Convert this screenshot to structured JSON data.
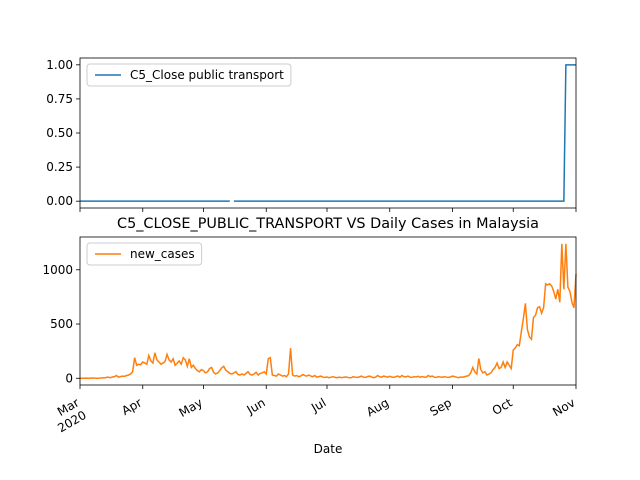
{
  "chart_data": [
    {
      "type": "line",
      "series": [
        {
          "name": "C5_Close public transport",
          "color": "#1f77b4",
          "values": [
            0,
            0,
            0,
            0,
            0,
            0,
            0,
            0,
            0,
            0,
            0,
            0,
            0,
            0,
            0,
            0,
            0,
            0,
            0,
            0,
            0,
            0,
            0,
            0,
            0,
            0,
            0,
            0,
            0,
            0,
            0,
            0,
            0,
            0,
            0,
            0,
            0,
            0,
            0,
            0,
            0,
            0,
            0,
            0,
            0,
            0,
            0,
            0,
            0,
            0,
            0,
            0,
            0,
            0,
            0,
            0,
            0,
            0,
            0,
            0,
            0,
            0,
            0,
            0,
            0,
            0,
            0,
            0,
            0,
            0,
            0,
            0,
            0,
            0,
            0,
            null,
            0,
            0,
            0,
            0,
            0,
            0,
            0,
            0,
            0,
            0,
            0,
            0,
            0,
            0,
            0,
            0,
            0,
            0,
            0,
            0,
            0,
            0,
            0,
            0,
            0,
            0,
            0,
            0,
            0,
            0,
            0,
            0,
            0,
            0,
            0,
            0,
            0,
            0,
            0,
            0,
            0,
            0,
            0,
            0,
            0,
            0,
            0,
            0,
            0,
            0,
            0,
            0,
            0,
            0,
            0,
            0,
            0,
            0,
            0,
            0,
            0,
            0,
            0,
            0,
            0,
            0,
            0,
            0,
            0,
            0,
            0,
            0,
            0,
            0,
            0,
            0,
            0,
            0,
            0,
            0,
            0,
            0,
            0,
            0,
            0,
            0,
            0,
            0,
            0,
            0,
            0,
            0,
            0,
            0,
            0,
            0,
            0,
            0,
            0,
            0,
            0,
            0,
            0,
            0,
            0,
            0,
            0,
            0,
            0,
            0,
            0,
            0,
            0,
            0,
            0,
            0,
            0,
            0,
            0,
            0,
            0,
            0,
            0,
            0,
            0,
            0,
            0,
            0,
            0,
            0,
            0,
            0,
            0,
            0,
            0,
            0,
            0,
            0,
            0,
            0,
            0,
            0,
            0,
            0,
            0,
            0,
            0,
            0,
            0,
            0,
            0,
            0,
            0,
            0,
            0,
            0,
            0,
            0,
            0,
            0,
            0,
            0,
            0,
            0,
            1,
            1,
            1,
            1,
            1,
            1
          ]
        }
      ],
      "ylim": [
        -0.05,
        1.05
      ],
      "yticks": [
        {
          "value": 0,
          "label": "0.00"
        },
        {
          "value": 0.25,
          "label": "0.25"
        },
        {
          "value": 0.5,
          "label": "0.50"
        },
        {
          "value": 0.75,
          "label": "0.75"
        },
        {
          "value": 1,
          "label": "1.00"
        }
      ],
      "legend": "upper left",
      "grid": false
    },
    {
      "type": "line",
      "title": "C5_CLOSE_PUBLIC_TRANSPORT VS Daily Cases in Malaysia",
      "x_label": "Date",
      "categories": [
        "Mar\n2020",
        null,
        null,
        null,
        null,
        null,
        null,
        null,
        null,
        null,
        null,
        null,
        null,
        null,
        null,
        null,
        null,
        null,
        null,
        null,
        null,
        null,
        null,
        null,
        null,
        null,
        null,
        null,
        null,
        null,
        null,
        "Apr",
        null,
        null,
        null,
        null,
        null,
        null,
        null,
        null,
        null,
        null,
        null,
        null,
        null,
        null,
        null,
        null,
        null,
        null,
        null,
        null,
        null,
        null,
        null,
        null,
        null,
        null,
        null,
        null,
        null,
        "May",
        null,
        null,
        null,
        null,
        null,
        null,
        null,
        null,
        null,
        null,
        null,
        null,
        null,
        null,
        null,
        null,
        null,
        null,
        null,
        null,
        null,
        null,
        null,
        null,
        null,
        null,
        null,
        null,
        null,
        null,
        "Jun",
        null,
        null,
        null,
        null,
        null,
        null,
        null,
        null,
        null,
        null,
        null,
        null,
        null,
        null,
        null,
        null,
        null,
        null,
        null,
        null,
        null,
        null,
        null,
        null,
        null,
        null,
        null,
        null,
        null,
        "Jul",
        null,
        null,
        null,
        null,
        null,
        null,
        null,
        null,
        null,
        null,
        null,
        null,
        null,
        null,
        null,
        null,
        null,
        null,
        null,
        null,
        null,
        null,
        null,
        null,
        null,
        null,
        null,
        null,
        null,
        null,
        "Aug",
        null,
        null,
        null,
        null,
        null,
        null,
        null,
        null,
        null,
        null,
        null,
        null,
        null,
        null,
        null,
        null,
        null,
        null,
        null,
        null,
        null,
        null,
        null,
        null,
        null,
        null,
        null,
        null,
        null,
        null,
        "Sep",
        null,
        null,
        null,
        null,
        null,
        null,
        null,
        null,
        null,
        null,
        null,
        null,
        null,
        null,
        null,
        null,
        null,
        null,
        null,
        null,
        null,
        null,
        null,
        null,
        null,
        null,
        null,
        null,
        null,
        "Oct",
        null,
        null,
        null,
        null,
        null,
        null,
        null,
        null,
        null,
        null,
        null,
        null,
        null,
        null,
        null,
        null,
        null,
        null,
        null,
        null,
        null,
        null,
        null,
        null,
        null,
        null,
        null,
        null,
        null,
        null,
        "Nov"
      ],
      "series": [
        {
          "name": "new_cases",
          "color": "#ff7f0e",
          "values": [
            0,
            0,
            0,
            1,
            0,
            0,
            2,
            1,
            0,
            0,
            2,
            5,
            3,
            8,
            10,
            5,
            12,
            15,
            25,
            10,
            15,
            20,
            18,
            25,
            30,
            40,
            60,
            190,
            120,
            130,
            125,
            150,
            140,
            130,
            210,
            160,
            140,
            235,
            170,
            150,
            130,
            140,
            155,
            220,
            170,
            150,
            180,
            120,
            140,
            160,
            130,
            190,
            170,
            110,
            180,
            100,
            120,
            90,
            70,
            60,
            80,
            70,
            50,
            60,
            90,
            100,
            55,
            40,
            50,
            70,
            95,
            110,
            75,
            60,
            45,
            40,
            50,
            60,
            35,
            30,
            40,
            30,
            45,
            60,
            35,
            30,
            40,
            55,
            30,
            45,
            50,
            60,
            40,
            180,
            190,
            30,
            25,
            20,
            40,
            30,
            20,
            25,
            15,
            40,
            277,
            30,
            20,
            25,
            15,
            20,
            35,
            25,
            20,
            30,
            20,
            15,
            25,
            10,
            15,
            20,
            10,
            8,
            12,
            5,
            10,
            15,
            8,
            5,
            10,
            6,
            8,
            12,
            10,
            5,
            6,
            15,
            10,
            8,
            12,
            20,
            10,
            8,
            15,
            20,
            12,
            5,
            10,
            25,
            15,
            10,
            20,
            15,
            10,
            18,
            12,
            8,
            15,
            20,
            10,
            25,
            15,
            12,
            20,
            10,
            8,
            15,
            12,
            18,
            10,
            15,
            12,
            10,
            25,
            15,
            20,
            10,
            8,
            15,
            12,
            10,
            15,
            10,
            8,
            12,
            20,
            15,
            10,
            5,
            12,
            10,
            15,
            20,
            25,
            50,
            100,
            60,
            40,
            182,
            80,
            50,
            60,
            30,
            40,
            50,
            80,
            100,
            140,
            90,
            100,
            150,
            100,
            150,
            120,
            90,
            260,
            280,
            310,
            300,
            430,
            550,
            690,
            450,
            380,
            360,
            560,
            580,
            650,
            660,
            600,
            650,
            870,
            860,
            870,
            850,
            800,
            730,
            820,
            700,
            1240,
            820,
            1240,
            840,
            800,
            700,
            650,
            960
          ]
        }
      ],
      "ylim": [
        -62,
        1302
      ],
      "yticks": [
        0,
        500,
        1000
      ],
      "legend": "upper left",
      "grid": false
    }
  ]
}
